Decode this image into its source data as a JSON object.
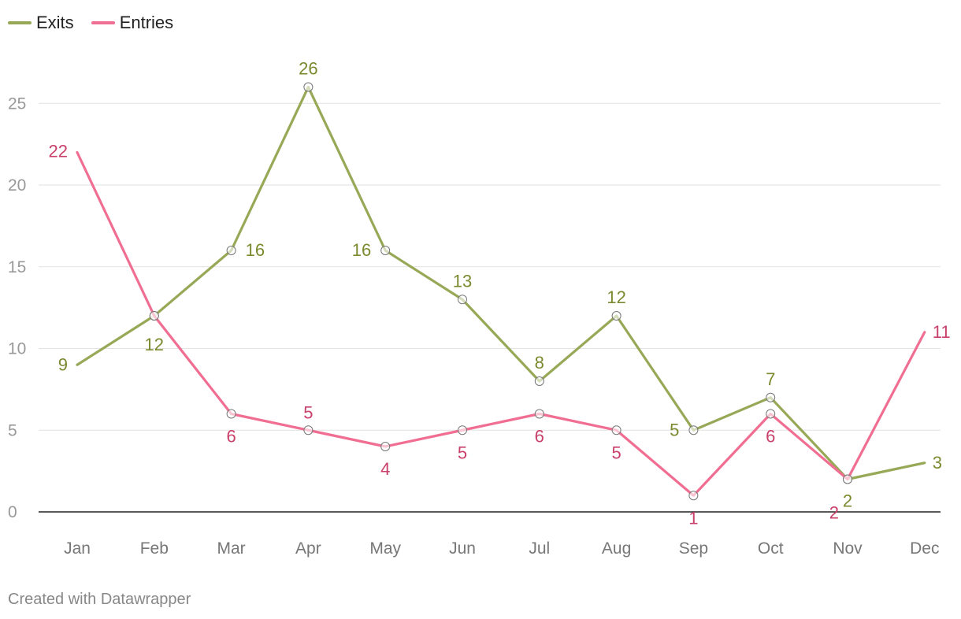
{
  "chart_data": {
    "type": "line",
    "categories": [
      "Jan",
      "Feb",
      "Mar",
      "Apr",
      "May",
      "Jun",
      "Jul",
      "Aug",
      "Sep",
      "Oct",
      "Nov",
      "Dec"
    ],
    "series": [
      {
        "name": "Exits",
        "color": "#97a857",
        "label_color": "#7a8a2e",
        "values": [
          9,
          12,
          16,
          26,
          16,
          13,
          8,
          12,
          5,
          7,
          2,
          3
        ]
      },
      {
        "name": "Entries",
        "color": "#f06e92",
        "label_color": "#c9406b",
        "values": [
          22,
          12,
          6,
          5,
          4,
          5,
          6,
          5,
          1,
          6,
          2,
          11
        ]
      }
    ],
    "yticks": [
      0,
      5,
      10,
      15,
      20,
      25
    ],
    "ylim": [
      0,
      27.5
    ],
    "grid": true,
    "legend_position": "top-left"
  },
  "footer": {
    "credit": "Created with Datawrapper"
  }
}
